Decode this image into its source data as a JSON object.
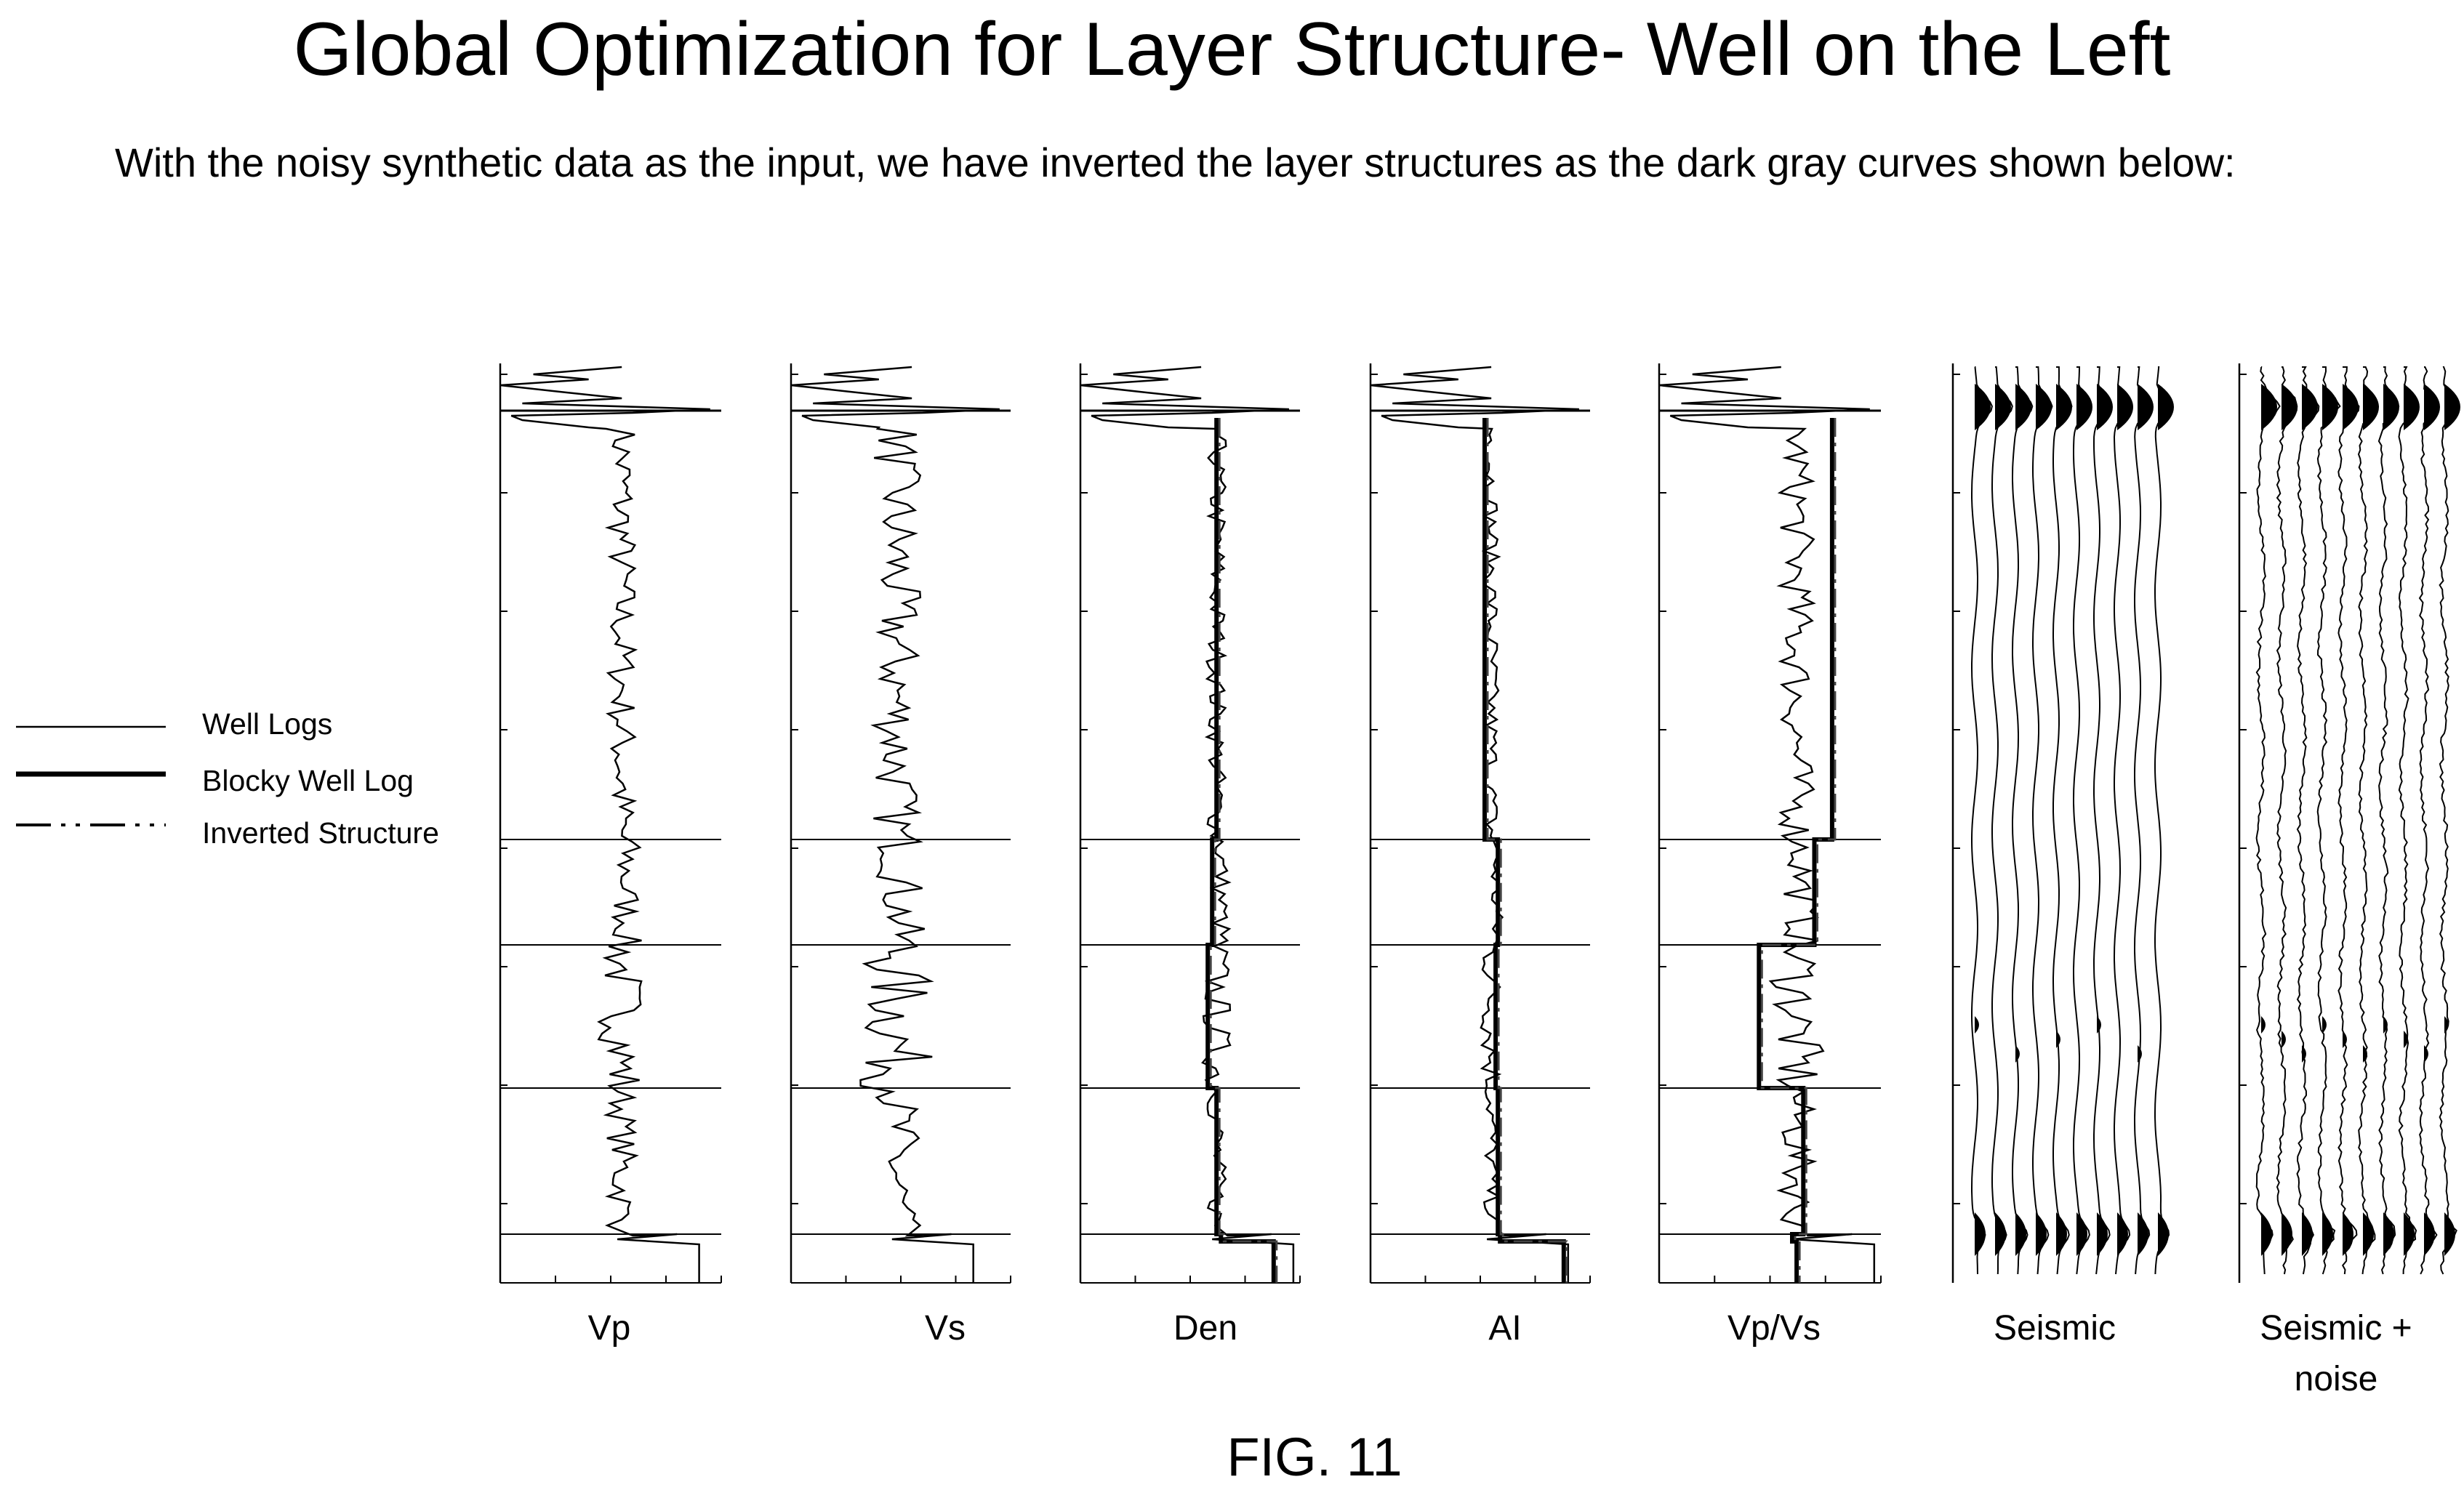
{
  "title": "Global Optimization for Layer Structure- Well on the Left",
  "description": "With the noisy synthetic data as the input, we have inverted the layer structures as the dark gray curves shown below:",
  "legend": [
    {
      "label": "Well Logs",
      "style": "thin"
    },
    {
      "label": "Blocky Well Log",
      "style": "thick"
    },
    {
      "label": "Inverted Structure",
      "style": "dash-dot"
    }
  ],
  "tracks": [
    {
      "label": "Vp",
      "kind": "log",
      "blocky": false
    },
    {
      "label": "Vs",
      "kind": "log",
      "blocky": false
    },
    {
      "label": "Den",
      "kind": "log",
      "blocky": true
    },
    {
      "label": "AI",
      "kind": "log",
      "blocky": true
    },
    {
      "label": "Vp/Vs",
      "kind": "log",
      "blocky": true
    },
    {
      "label": "Seismic",
      "kind": "seismic",
      "noise": false
    },
    {
      "label": "Seismic +",
      "label2": "noise",
      "kind": "seismic",
      "noise": true
    }
  ],
  "caption": "FIG. 11",
  "colors": {
    "ink": "#000000",
    "background": "#ffffff"
  }
}
